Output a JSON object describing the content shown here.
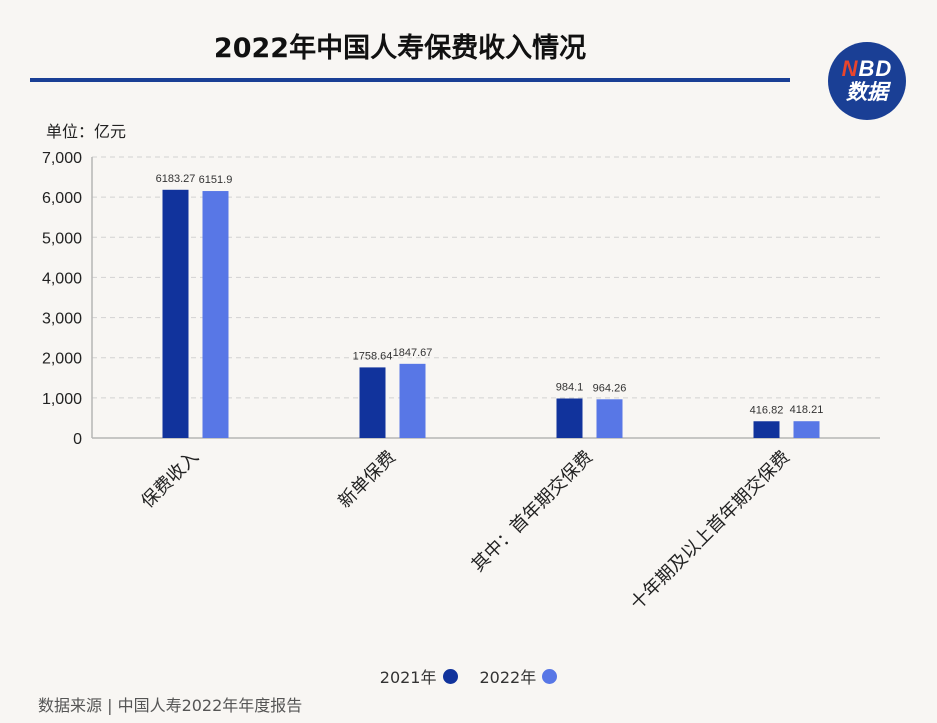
{
  "header": {
    "title": "2022年中国人寿保费收入情况",
    "logo_line1_n": "N",
    "logo_line1_rest": "BD",
    "logo_line2": "数据"
  },
  "unit_label": "单位：亿元",
  "source": "数据来源 | 中国人寿2022年年度报告",
  "colors": {
    "series_2021": "#11339c",
    "series_2022": "#5877e6",
    "grid": "#d2d2d2",
    "axis": "#b5b5b5"
  },
  "chart_data": {
    "type": "bar",
    "title": "2022年中国人寿保费收入情况",
    "ylabel": "单位：亿元",
    "ylim": [
      0,
      7000
    ],
    "yticks": [
      "0",
      "1,000",
      "2,000",
      "3,000",
      "4,000",
      "5,000",
      "6,000",
      "7,000"
    ],
    "ytick_values": [
      0,
      1000,
      2000,
      3000,
      4000,
      5000,
      6000,
      7000
    ],
    "grid": true,
    "legend": "bottom-center",
    "categories": [
      "保费收入",
      "新单保费",
      "其中：首年期交保费",
      "十年期及以上首年期交保费"
    ],
    "series": [
      {
        "name": "2021年",
        "values": [
          6183.27,
          1758.64,
          984.1,
          416.82
        ],
        "labels": [
          "6183.27",
          "1758.64",
          "984.1",
          "416.82"
        ]
      },
      {
        "name": "2022年",
        "values": [
          6151.9,
          1847.67,
          964.26,
          418.21
        ],
        "labels": [
          "6151.9",
          "1847.67",
          "964.26",
          "418.21"
        ]
      }
    ]
  }
}
